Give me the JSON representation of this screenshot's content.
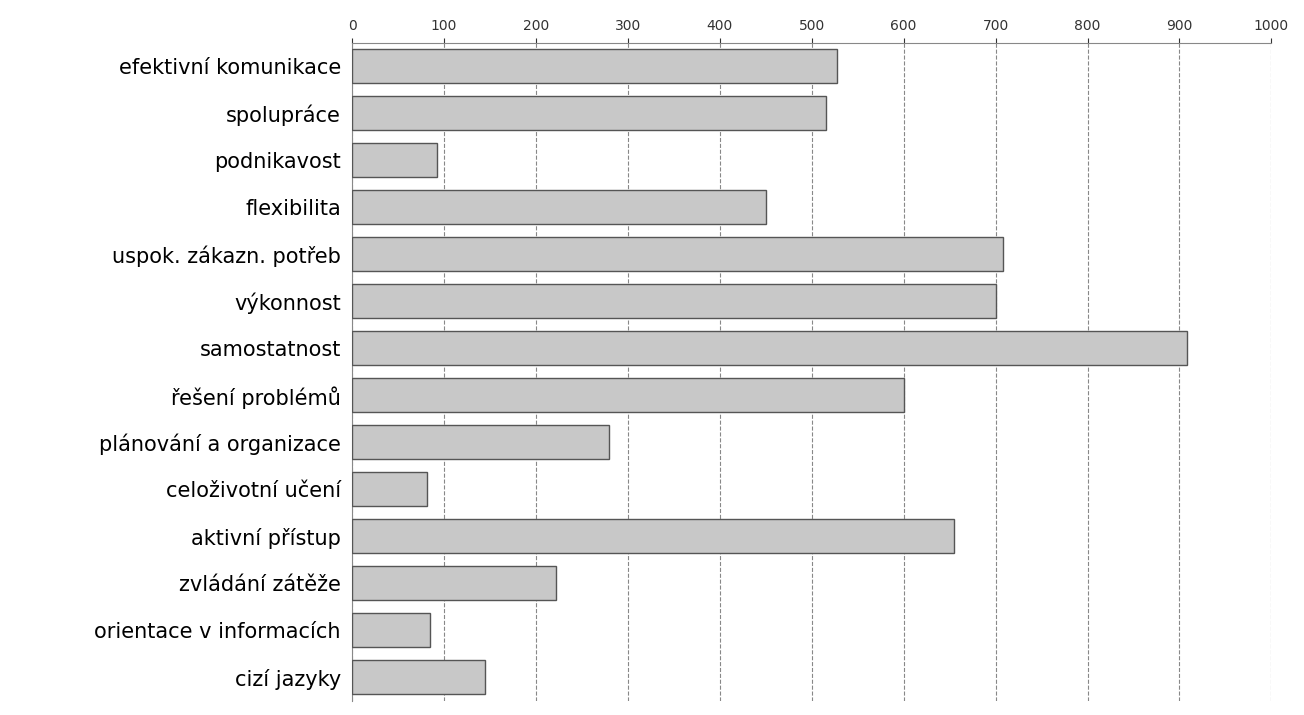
{
  "chart_data": {
    "type": "bar",
    "orientation": "horizontal",
    "categories": [
      "efektivní komunikace",
      "spolupráce",
      "podnikavost",
      "flexibilita",
      "uspok. zákazn. potřeb",
      "výkonnost",
      "samostatnost",
      "řešení problémů",
      "plánování a organizace",
      "celoživotní učení",
      "aktivní přístup",
      "zvládání zátěže",
      "orientace v informacích",
      "cizí jazyky"
    ],
    "values": [
      528,
      515,
      92,
      450,
      708,
      700,
      908,
      600,
      280,
      82,
      655,
      222,
      85,
      145
    ],
    "color": "#c8c8c8",
    "xlim": [
      0,
      1000
    ],
    "xticks": [
      0,
      100,
      200,
      300,
      400,
      500,
      600,
      700,
      800,
      900,
      1000
    ],
    "grid": true
  }
}
